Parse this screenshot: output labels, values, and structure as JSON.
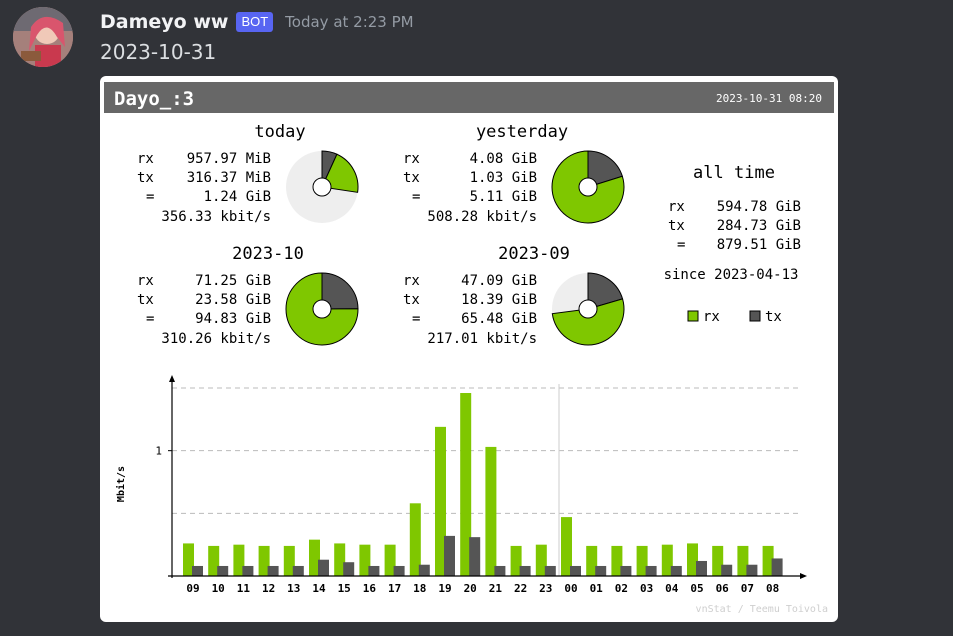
{
  "message": {
    "author": "Dameyo ww",
    "bot_tag": "BOT",
    "timestamp": "Today at 2:23 PM",
    "text": "2023-10-31"
  },
  "vnstat": {
    "title": "Dayo_:3",
    "generated": "2023-10-31 08:20",
    "today": {
      "heading": "today",
      "rx": "957.97 MiB",
      "tx": "316.37 MiB",
      "total": "1.24 GiB",
      "rate": "356.33 kbit/s",
      "rx_frac": 0.2058,
      "tx_frac": 0.068
    },
    "yesterday": {
      "heading": "yesterday",
      "rx": "4.08 GiB",
      "tx": "1.03 GiB",
      "total": "5.11 GiB",
      "rate": "508.28 kbit/s",
      "rx_frac": 0.7984,
      "tx_frac": 0.2016
    },
    "month_current": {
      "heading": "2023-10",
      "rx": "71.25 GiB",
      "tx": "23.58 GiB",
      "total": "94.83 GiB",
      "rate": "310.26 kbit/s",
      "rx_frac": 0.7513,
      "tx_frac": 0.2487
    },
    "month_previous": {
      "heading": "2023-09",
      "rx": "47.09 GiB",
      "tx": "18.39 GiB",
      "total": "65.48 GiB",
      "rate": "217.01 kbit/s",
      "rx_frac": 0.5244,
      "tx_frac": 0.2048
    },
    "all_time": {
      "heading": "all time",
      "rx": "594.78 GiB",
      "tx": "284.73 GiB",
      "total": "879.51 GiB",
      "since": "since 2023-04-13"
    },
    "labels": {
      "rx": "rx",
      "tx": "tx",
      "eq": "="
    },
    "legend": {
      "rx": "rx",
      "tx": "tx"
    },
    "credit": "vnStat / Teemu Toivola",
    "colors": {
      "rx": "#7fc700",
      "tx": "#555555",
      "unused": "#eeeeee",
      "header_bg": "#676767",
      "header_text": "#ffffff",
      "text": "#000000"
    }
  },
  "chart_data": {
    "type": "bar",
    "ylabel": "Mbit/s",
    "yticks": [
      1
    ],
    "ylim": [
      0,
      1.5
    ],
    "categories": [
      "09",
      "10",
      "11",
      "12",
      "13",
      "14",
      "15",
      "16",
      "17",
      "18",
      "19",
      "20",
      "21",
      "22",
      "23",
      "00",
      "01",
      "02",
      "03",
      "04",
      "05",
      "06",
      "07",
      "08"
    ],
    "day_separator_before": "00",
    "series": [
      {
        "name": "rx",
        "values": [
          0.26,
          0.24,
          0.25,
          0.24,
          0.24,
          0.29,
          0.26,
          0.25,
          0.25,
          0.58,
          1.19,
          1.46,
          1.03,
          0.24,
          0.25,
          0.47,
          0.24,
          0.24,
          0.24,
          0.25,
          0.26,
          0.24,
          0.24,
          0.24
        ]
      },
      {
        "name": "tx",
        "values": [
          0.08,
          0.08,
          0.08,
          0.08,
          0.08,
          0.13,
          0.11,
          0.08,
          0.08,
          0.09,
          0.32,
          0.31,
          0.08,
          0.08,
          0.08,
          0.08,
          0.08,
          0.08,
          0.08,
          0.08,
          0.12,
          0.09,
          0.09,
          0.14
        ]
      }
    ]
  }
}
